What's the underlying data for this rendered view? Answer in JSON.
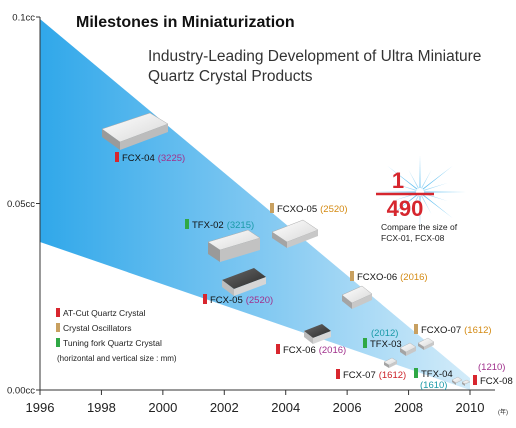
{
  "title": "Milestones in Miniaturization",
  "subtitle_lines": [
    "Industry-Leading Development of Ultra Miniature",
    "Quartz Crystal Products"
  ],
  "colors": {
    "at_cut": "#d8262e",
    "oscillator": "#c8a060",
    "tuning_fork": "#2fa845",
    "size_magenta": "#a0308c",
    "size_orange": "#d48a12",
    "size_teal": "#1a9aa8",
    "size_red": "#cc2228",
    "band_dark": "#1ea0e8",
    "band_light": "#cfeaf9"
  },
  "legend": {
    "items": [
      {
        "label": "AT-Cut Quartz Crystal",
        "category": "at_cut"
      },
      {
        "label": "Crystal Oscillators",
        "category": "oscillator"
      },
      {
        "label": "Tuning fork Quartz Crystal",
        "category": "tuning_fork"
      }
    ],
    "note": "(horizontal and vertical size : mm)"
  },
  "ratio": {
    "numerator": "1",
    "denominator": "490",
    "caption_lines": [
      "Compare the size of",
      "FCX-01, FCX-08"
    ]
  },
  "chart_data": {
    "type": "scatter",
    "title": "Milestones in Miniaturization",
    "x_ticks": [
      "1996",
      "1998",
      "2000",
      "2002",
      "2004",
      "2006",
      "2008",
      "2010"
    ],
    "x_unit": "(年)",
    "y_ticks": [
      "0.00cc",
      "0.05cc",
      "0.1cc"
    ],
    "xlim": [
      1996,
      2010
    ],
    "ylim": [
      0,
      0.1
    ],
    "points": [
      {
        "product": "FCX-04",
        "size": "(3225)",
        "category": "at_cut",
        "size_color": "magenta",
        "x": 1998.2,
        "y": 0.072
      },
      {
        "product": "TFX-02",
        "size": "(3215)",
        "category": "tuning_fork",
        "size_color": "teal",
        "x": 2001.2,
        "y": 0.038
      },
      {
        "product": "FCXO-05",
        "size": "(2520)",
        "category": "oscillator",
        "size_color": "orange",
        "x": 2003.3,
        "y": 0.045
      },
      {
        "product": "FCX-05",
        "size": "(2520)",
        "category": "at_cut",
        "size_color": "magenta",
        "x": 2001.3,
        "y": 0.026
      },
      {
        "product": "FCXO-06",
        "size": "(2016)",
        "category": "oscillator",
        "size_color": "orange",
        "x": 2005.2,
        "y": 0.026
      },
      {
        "product": "FCX-06",
        "size": "(2016)",
        "category": "at_cut",
        "size_color": "magenta",
        "x": 2004.5,
        "y": 0.012
      },
      {
        "product": "TFX-03",
        "size": "(2012)",
        "category": "tuning_fork",
        "size_color": "teal",
        "x": 2007.2,
        "y": 0.01
      },
      {
        "product": "FCXO-07",
        "size": "(1612)",
        "category": "oscillator",
        "size_color": "orange",
        "x": 2007.8,
        "y": 0.012
      },
      {
        "product": "FCX-07",
        "size": "(1612)",
        "category": "at_cut",
        "size_color": "red",
        "x": 2007.2,
        "y": 0.004
      },
      {
        "product": "TFX-04",
        "size": "(1610)",
        "category": "tuning_fork",
        "size_color": "teal",
        "x": 2008.5,
        "y": 0.004
      },
      {
        "product": "FCX-08",
        "size": "(1210)",
        "category": "at_cut",
        "size_color": "magenta",
        "x": 2009.6,
        "y": 0.002
      }
    ]
  }
}
